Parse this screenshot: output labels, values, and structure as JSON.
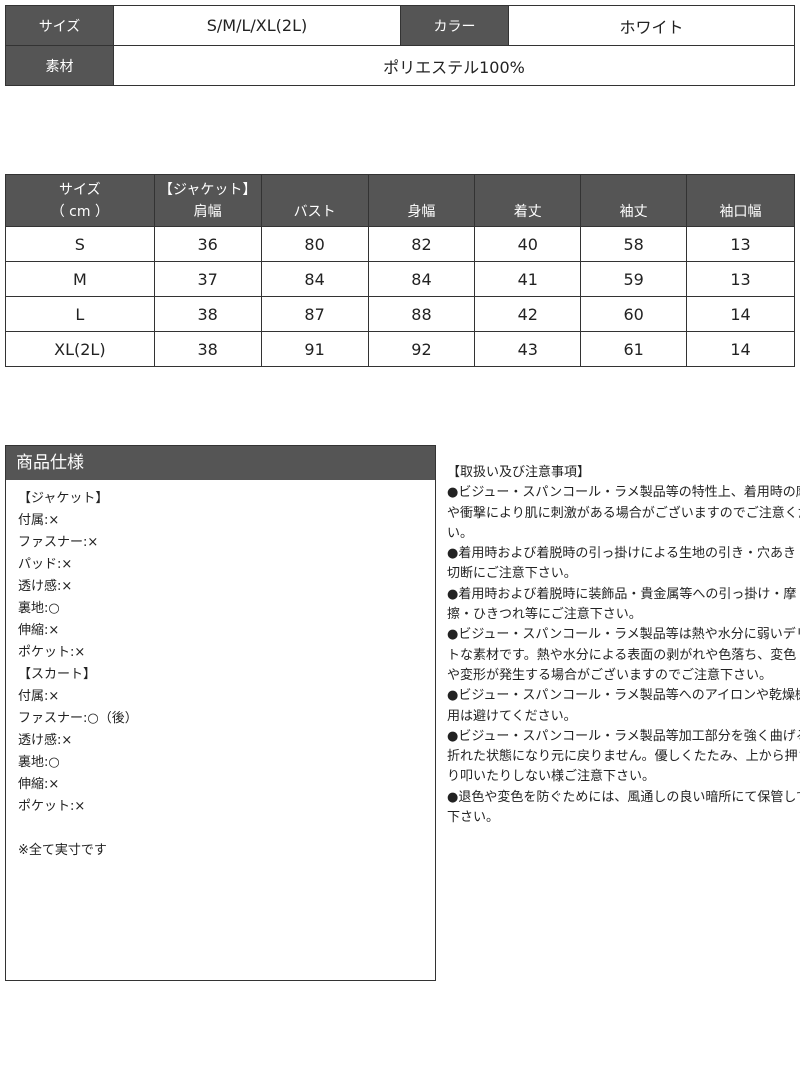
{
  "top": {
    "size_label": "サイズ",
    "size_value": "S/M/L/XL(2L)",
    "color_label": "カラー",
    "color_value": "ホワイト",
    "material_label": "素材",
    "material_value": "ポリエステル100%"
  },
  "size_table": {
    "headers": [
      [
        "サイズ",
        "（ cm ）"
      ],
      [
        "【ジャケット】",
        "肩幅"
      ],
      [
        "",
        "バスト"
      ],
      [
        "",
        "身幅"
      ],
      [
        "",
        "着丈"
      ],
      [
        "",
        "袖丈"
      ],
      [
        "",
        "袖口幅"
      ]
    ],
    "rows": [
      [
        "S",
        "36",
        "80",
        "82",
        "40",
        "58",
        "13"
      ],
      [
        "M",
        "37",
        "84",
        "84",
        "41",
        "59",
        "13"
      ],
      [
        "L",
        "38",
        "87",
        "88",
        "42",
        "60",
        "14"
      ],
      [
        "XL(2L)",
        "38",
        "91",
        "92",
        "43",
        "61",
        "14"
      ]
    ]
  },
  "spec": {
    "title": "商品仕様",
    "lines": [
      "【ジャケット】",
      "付属:×",
      "ファスナー:×",
      "パッド:×",
      "透け感:×",
      "裏地:○",
      "伸縮:×",
      "ポケット:×",
      "【スカート】",
      "付属:×",
      "ファスナー:○（後）",
      "透け感:×",
      "裏地:○",
      "伸縮:×",
      "ポケット:×",
      "",
      "※全て実寸です"
    ]
  },
  "notes": {
    "lines": [
      "【取扱い及び注意事項】",
      "●ビジュー・スパンコール・ラメ製品等の特性上、着用時の摩擦",
      "や衝撃により肌に刺激がある場合がございますのでご注意くださ",
      "い。",
      "●着用時および着脱時の引っ掛けによる生地の引き・穴あき・",
      "切断にご注意下さい。",
      "●着用時および着脱時に装飾品・貴金属等への引っ掛け・摩",
      "擦・ひきつれ等にご注意下さい。",
      "●ビジュー・スパンコール・ラメ製品等は熱や水分に弱いデリケー",
      "トな素材です。熱や水分による表面の剥がれや色落ち、変色",
      "や変形が発生する場合がございますのでご注意下さい。",
      "●ビジュー・スパンコール・ラメ製品等へのアイロンや乾燥機の使",
      "用は避けてください。",
      "●ビジュー・スパンコール・ラメ製品等加工部分を強く曲げると",
      "折れた状態になり元に戻りません。優しくたたみ、上から押さえた",
      "り叩いたりしない様ご注意下さい。",
      "●退色や変色を防ぐためには、風通しの良い暗所にて保管して",
      "下さい。"
    ]
  }
}
